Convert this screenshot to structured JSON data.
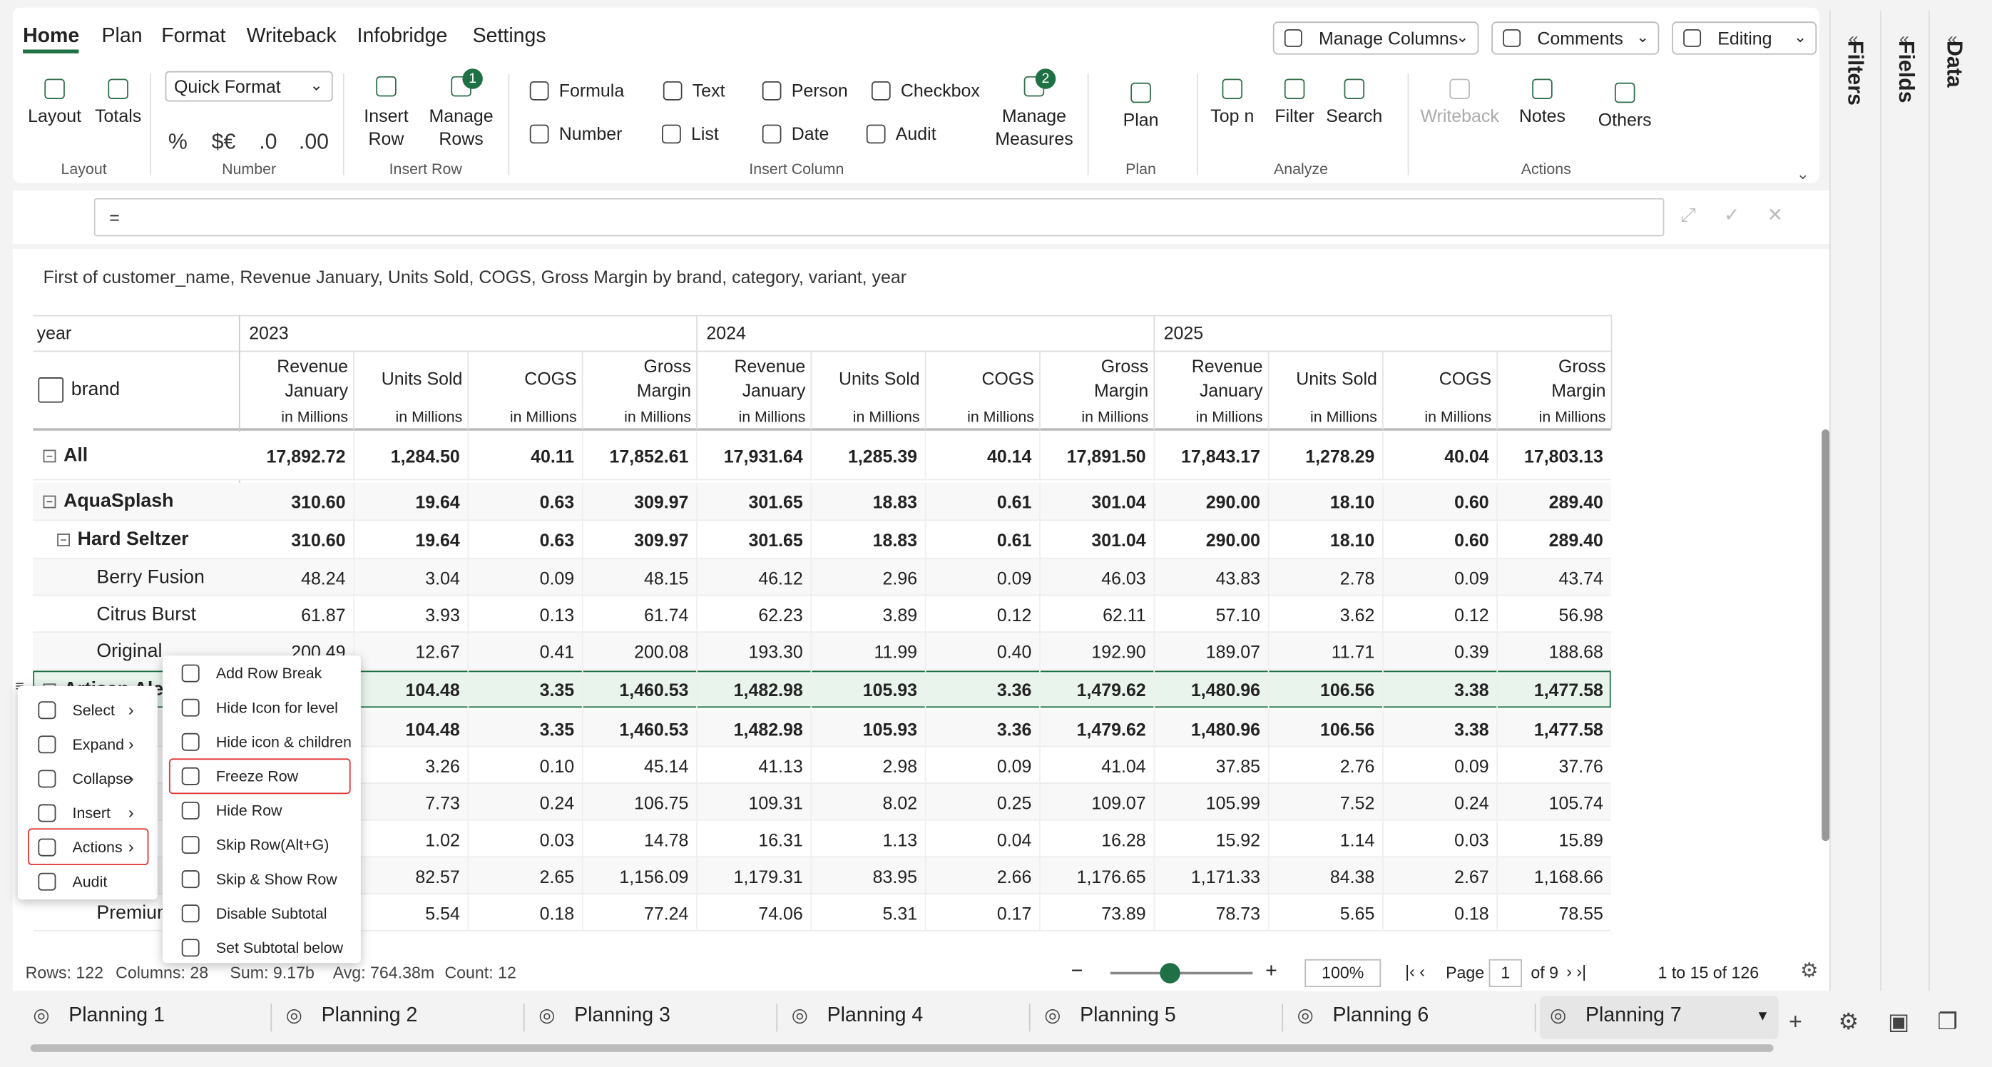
{
  "ribbon_tabs": [
    "Home",
    "Plan",
    "Format",
    "Writeback",
    "Infobridge",
    "Settings"
  ],
  "toolbar_buttons": [
    "Manage Columns",
    "Comments",
    "Editing"
  ],
  "side_panels": [
    "Filters",
    "Fields",
    "Data"
  ],
  "ribbon_groups": [
    {
      "label": "Layout",
      "items": [
        {
          "label": "Layout"
        },
        {
          "label": "Totals"
        }
      ]
    },
    {
      "label": "Number",
      "items": [
        {
          "label": "Quick Format"
        },
        {
          "label": "%"
        },
        {
          "label": "$€"
        },
        {
          "label": ".0"
        },
        {
          "label": ".00"
        }
      ]
    },
    {
      "label": "Insert Row",
      "items": [
        {
          "label": "Insert Row"
        },
        {
          "label": "Manage Rows",
          "badge": "1"
        }
      ]
    },
    {
      "label": "Insert Column",
      "items": [
        {
          "label": "Formula"
        },
        {
          "label": "Text"
        },
        {
          "label": "Person"
        },
        {
          "label": "Checkbox"
        },
        {
          "label": "Number"
        },
        {
          "label": "List"
        },
        {
          "label": "Date"
        },
        {
          "label": "Audit"
        },
        {
          "label": "Manage Measures",
          "badge": "2"
        }
      ]
    },
    {
      "label": "Plan",
      "items": [
        {
          "label": "Plan"
        }
      ]
    },
    {
      "label": "Analyze",
      "items": [
        {
          "label": "Top n"
        },
        {
          "label": "Filter"
        },
        {
          "label": "Search"
        }
      ]
    },
    {
      "label": "Actions",
      "items": [
        {
          "label": "Writeback"
        },
        {
          "label": "Notes"
        },
        {
          "label": "Others"
        }
      ]
    }
  ],
  "formula_bar": {
    "text": "="
  },
  "caption": "First of customer_name, Revenue January, Units Sold, COGS, Gross Margin by brand, category, variant, year",
  "table": {
    "corner_label": "year",
    "row_header": "brand",
    "years": [
      "2023",
      "2024",
      "2025"
    ],
    "measures": [
      {
        "lines": [
          "Revenue",
          "January"
        ],
        "unit": "in Millions"
      },
      {
        "lines": [
          "Units Sold"
        ],
        "unit": "in Millions"
      },
      {
        "lines": [
          "COGS"
        ],
        "unit": "in Millions"
      },
      {
        "lines": [
          "Gross",
          "Margin"
        ],
        "unit": "in Millions"
      }
    ],
    "selected_row": 6,
    "rows": [
      {
        "label": "All",
        "level": 0,
        "toggle": true,
        "bold": true,
        "values": [
          "17,892.72",
          "1,284.50",
          "40.11",
          "17,852.61",
          "17,931.64",
          "1,285.39",
          "40.14",
          "17,891.50",
          "17,843.17",
          "1,278.29",
          "40.04",
          "17,803.13"
        ]
      },
      {
        "label": "AquaSplash",
        "level": 0,
        "toggle": true,
        "bold": true,
        "values": [
          "310.60",
          "19.64",
          "0.63",
          "309.97",
          "301.65",
          "18.83",
          "0.61",
          "301.04",
          "290.00",
          "18.10",
          "0.60",
          "289.40"
        ]
      },
      {
        "label": "Hard Seltzer",
        "level": 1,
        "toggle": true,
        "bold": true,
        "values": [
          "310.60",
          "19.64",
          "0.63",
          "309.97",
          "301.65",
          "18.83",
          "0.61",
          "301.04",
          "290.00",
          "18.10",
          "0.60",
          "289.40"
        ]
      },
      {
        "label": "Berry Fusion",
        "level": 2,
        "toggle": false,
        "bold": false,
        "values": [
          "48.24",
          "3.04",
          "0.09",
          "48.15",
          "46.12",
          "2.96",
          "0.09",
          "46.03",
          "43.83",
          "2.78",
          "0.09",
          "43.74"
        ]
      },
      {
        "label": "Citrus Burst",
        "level": 2,
        "toggle": false,
        "bold": false,
        "values": [
          "61.87",
          "3.93",
          "0.13",
          "61.74",
          "62.23",
          "3.89",
          "0.12",
          "62.11",
          "57.10",
          "3.62",
          "0.12",
          "56.98"
        ]
      },
      {
        "label": "Original",
        "level": 2,
        "toggle": false,
        "bold": false,
        "values": [
          "200.49",
          "12.67",
          "0.41",
          "200.08",
          "193.30",
          "11.99",
          "0.40",
          "192.90",
          "189.07",
          "11.71",
          "0.39",
          "188.68"
        ]
      },
      {
        "label": "Artisan Ale",
        "level": 0,
        "toggle": true,
        "bold": true,
        "values": [
          null,
          "104.48",
          "3.35",
          "1,460.53",
          "1,482.98",
          "105.93",
          "3.36",
          "1,479.62",
          "1,480.96",
          "106.56",
          "3.38",
          "1,477.58"
        ]
      },
      {
        "label": null,
        "level": 1,
        "toggle": true,
        "bold": true,
        "values": [
          null,
          "104.48",
          "3.35",
          "1,460.53",
          "1,482.98",
          "105.93",
          "3.36",
          "1,479.62",
          "1,480.96",
          "106.56",
          "3.38",
          "1,477.58"
        ]
      },
      {
        "label": null,
        "level": 2,
        "toggle": false,
        "bold": false,
        "values": [
          null,
          "3.26",
          "0.10",
          "45.14",
          "41.13",
          "2.98",
          "0.09",
          "41.04",
          "37.85",
          "2.76",
          "0.09",
          "37.76"
        ]
      },
      {
        "label": null,
        "level": 2,
        "toggle": false,
        "bold": false,
        "values": [
          null,
          "7.73",
          "0.24",
          "106.75",
          "109.31",
          "8.02",
          "0.25",
          "109.07",
          "105.99",
          "7.52",
          "0.24",
          "105.74"
        ]
      },
      {
        "label": null,
        "level": 2,
        "toggle": false,
        "bold": false,
        "values": [
          null,
          "1.02",
          "0.03",
          "14.78",
          "16.31",
          "1.13",
          "0.04",
          "16.28",
          "15.92",
          "1.14",
          "0.03",
          "15.89"
        ]
      },
      {
        "label": null,
        "level": 2,
        "toggle": false,
        "bold": false,
        "values": [
          null,
          "82.57",
          "2.65",
          "1,156.09",
          "1,179.31",
          "83.95",
          "2.66",
          "1,176.65",
          "1,171.33",
          "84.38",
          "2.67",
          "1,168.66"
        ]
      },
      {
        "label": "Premium",
        "level": 2,
        "toggle": false,
        "bold": false,
        "values": [
          null,
          "5.54",
          "0.18",
          "77.24",
          "74.06",
          "5.31",
          "0.17",
          "73.89",
          "78.73",
          "5.65",
          "0.18",
          "78.55"
        ]
      }
    ]
  },
  "context_menu": {
    "items": [
      "Select",
      "Expand",
      "Collapse",
      "Insert",
      "Actions",
      "Audit"
    ],
    "active": 4
  },
  "submenu": {
    "items": [
      "Add Row Break",
      "Hide Icon for level",
      "Hide icon & children",
      "Freeze Row",
      "Hide Row",
      "Skip Row(Alt+G)",
      "Skip & Show Row",
      "Disable Subtotal",
      "Set Subtotal below"
    ],
    "active": 3
  },
  "status_bar": {
    "stats": [
      "Rows: 122",
      "Columns: 28",
      "Sum: 9.17b",
      "Avg: 764.38m",
      "Count: 12"
    ],
    "zoom": "100%",
    "page_label": "Page",
    "page": "1",
    "page_of": "of 9",
    "range": "1 to 15 of 126"
  },
  "sheets": {
    "tabs": [
      "Planning 1",
      "Planning 2",
      "Planning 3",
      "Planning 4",
      "Planning 5",
      "Planning 6",
      "Planning 7"
    ],
    "active": 6
  }
}
